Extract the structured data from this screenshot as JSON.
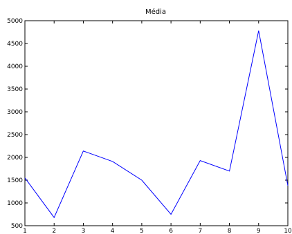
{
  "chart_data": {
    "type": "line",
    "title": "Média",
    "xlabel": "",
    "ylabel": "",
    "x": [
      1,
      2,
      3,
      4,
      5,
      6,
      7,
      8,
      9,
      10
    ],
    "series": [
      {
        "values": [
          1550,
          680,
          2140,
          1910,
          1500,
          750,
          1930,
          1700,
          4780,
          1380
        ]
      }
    ],
    "xlim": [
      1,
      10
    ],
    "ylim": [
      500,
      5000
    ],
    "xticks": [
      "1",
      "2",
      "3",
      "4",
      "5",
      "6",
      "7",
      "8",
      "9",
      "10"
    ],
    "yticks": [
      "500",
      "1000",
      "1500",
      "2000",
      "2500",
      "3000",
      "3500",
      "4000",
      "4500",
      "5000"
    ],
    "grid": false,
    "colors": {
      "line": "#0000ff",
      "axes": "#000000",
      "background": "#ffffff"
    }
  }
}
